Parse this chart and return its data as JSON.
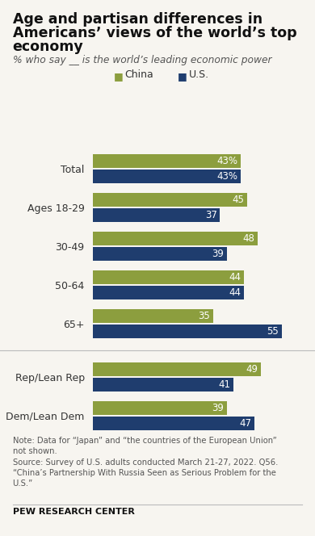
{
  "title_line1": "Age and partisan differences in",
  "title_line2": "Americans’ views of the world’s top",
  "title_line3": "economy",
  "subtitle": "% who say __ is the world’s leading economic power",
  "categories": [
    "Total",
    "Ages 18-29",
    "30-49",
    "50-64",
    "65+",
    "Rep/Lean Rep",
    "Dem/Lean Dem"
  ],
  "china_values": [
    43,
    45,
    48,
    44,
    35,
    49,
    39
  ],
  "us_values": [
    43,
    37,
    39,
    44,
    55,
    41,
    47
  ],
  "china_label_suffix": [
    "%",
    "",
    "",
    "",
    "",
    "",
    ""
  ],
  "us_label_suffix": [
    "",
    "",
    "",
    "",
    "",
    "",
    ""
  ],
  "china_color": "#8c9e3e",
  "us_color": "#1f3d6e",
  "bg_color": "#f7f5f0",
  "title_fontsize": 12.5,
  "subtitle_fontsize": 8.8,
  "label_fontsize": 9.0,
  "bar_label_fontsize": 8.5,
  "legend_fontsize": 9.0,
  "note_text": "Note: Data for “Japan” and “the countries of the European Union”\nnot shown.\nSource: Survey of U.S. adults conducted March 21-27, 2022. Q56.\n“China’s Partnership With Russia Seen as Serious Problem for the\nU.S.”",
  "footer_text": "PEW RESEARCH CENTER"
}
